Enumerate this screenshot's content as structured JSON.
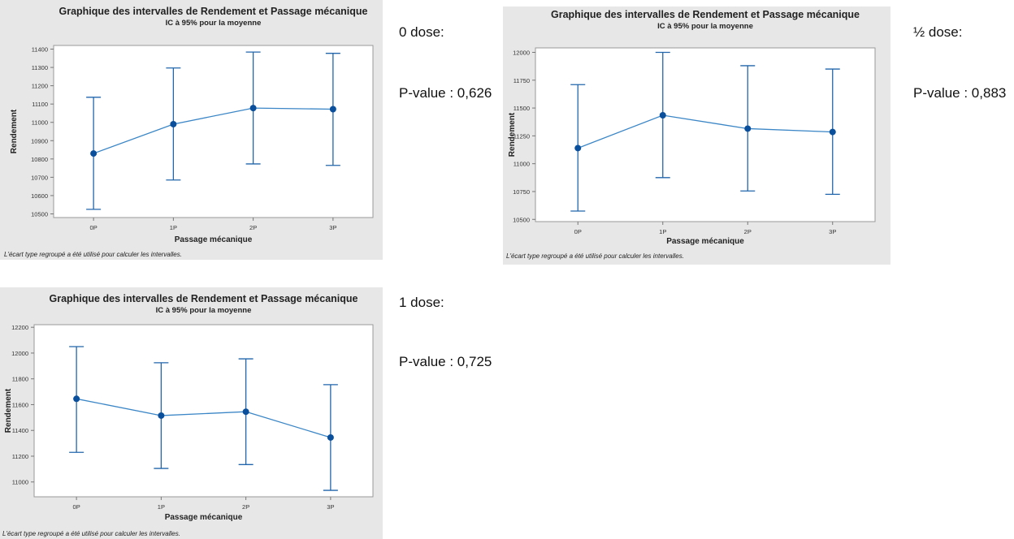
{
  "chart_data": [
    {
      "type": "line",
      "title": "Graphique des intervalles de Rendement et Passage mécanique",
      "subtitle": "IC à 95% pour la moyenne",
      "xlabel": "Passage mécanique",
      "ylabel": "Rendement",
      "footnote": "L'écart type regroupé a été utilisé pour calculer les intervalles.",
      "categories": [
        "0P",
        "1P",
        "2P",
        "3P"
      ],
      "values": [
        10830,
        10990,
        11078,
        11072
      ],
      "lower": [
        10525,
        10685,
        10773,
        10765
      ],
      "upper": [
        11137,
        11297,
        11384,
        11377
      ],
      "yticks": [
        10500,
        10600,
        10700,
        10800,
        10900,
        11000,
        11100,
        11200,
        11300,
        11400
      ],
      "ylim": [
        10480,
        11420
      ],
      "grid": false,
      "color": "#2166ac"
    },
    {
      "type": "line",
      "title": "Graphique des intervalles de Rendement et Passage mécanique",
      "subtitle": "IC à 95% pour la moyenne",
      "xlabel": "Passage mécanique",
      "ylabel": "Rendement",
      "footnote": "L'écart type regroupé a été utilisé pour calculer les intervalles.",
      "categories": [
        "0P",
        "1P",
        "2P",
        "3P"
      ],
      "values": [
        11140,
        11435,
        11315,
        11285
      ],
      "lower": [
        10575,
        10875,
        10755,
        10725
      ],
      "upper": [
        11710,
        12000,
        11880,
        11850
      ],
      "yticks": [
        10500,
        10750,
        11000,
        11250,
        11500,
        11750,
        12000
      ],
      "ylim": [
        10480,
        12040
      ],
      "grid": false,
      "color": "#2166ac"
    },
    {
      "type": "line",
      "title": "Graphique des intervalles de Rendement et Passage mécanique",
      "subtitle": "IC à 95% pour la moyenne",
      "xlabel": "Passage mécanique",
      "ylabel": "Rendement",
      "footnote": "L'écart type regroupé a été utilisé pour calculer les intervalles.",
      "categories": [
        "0P",
        "1P",
        "2P",
        "3P"
      ],
      "values": [
        11645,
        11515,
        11545,
        11345
      ],
      "lower": [
        11230,
        11105,
        11135,
        10935
      ],
      "upper": [
        12050,
        11925,
        11955,
        11755
      ],
      "yticks": [
        11000,
        11200,
        11400,
        11600,
        11800,
        12000,
        12200
      ],
      "ylim": [
        10885,
        12220
      ],
      "grid": false,
      "color": "#2166ac"
    }
  ],
  "side_labels": [
    {
      "dose": "0 dose:",
      "pvalue": "P-value : 0,626"
    },
    {
      "dose": "½ dose:",
      "pvalue": "P-value : 0,883"
    },
    {
      "dose": "1 dose:",
      "pvalue": "P-value : 0,725"
    }
  ]
}
